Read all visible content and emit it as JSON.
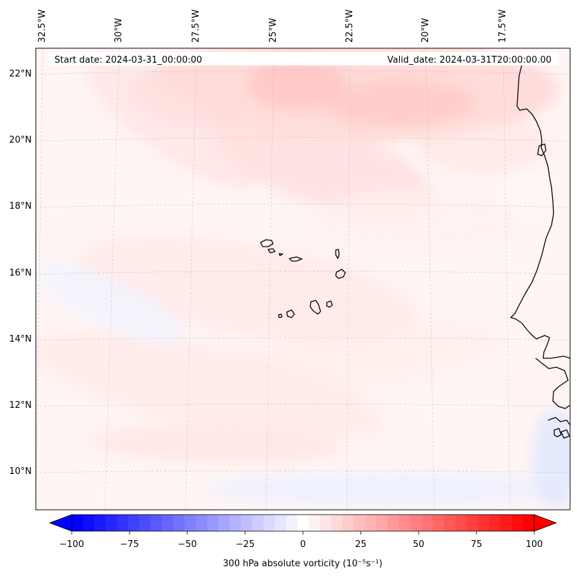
{
  "header": {
    "start_date": "Start date: 2024-03-31_00:00:00",
    "valid_date": "Valid_date: 2024-03-31T20:00:00.00"
  },
  "map": {
    "lon_labels": [
      "32.5°W",
      "30°W",
      "27.5°W",
      "25°W",
      "22.5°W",
      "20°W",
      "17.5°W"
    ],
    "lat_labels": [
      "22°N",
      "20°N",
      "18°N",
      "16°N",
      "14°N",
      "12°N",
      "10°N"
    ]
  },
  "colorbar": {
    "label": "300 hPa absolute vorticity (10⁻⁵s⁻¹)",
    "ticks": [
      "−100",
      "−75",
      "−50",
      "−25",
      "0",
      "25",
      "50",
      "75",
      "100"
    ],
    "min": -100,
    "max": 100,
    "levels": 41,
    "colormap": "bwr",
    "min_color": "#0000ff",
    "mid_color": "#ffffff",
    "max_color": "#ff0000",
    "extend": "both"
  }
}
